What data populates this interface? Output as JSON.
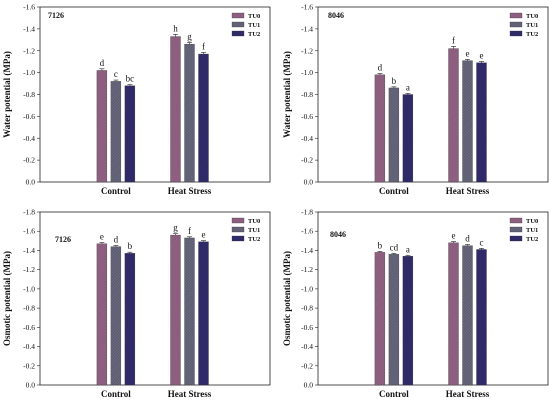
{
  "colors": {
    "TU0": "#8a5a7c",
    "TU1": "#5c5c72",
    "TU2": "#2b2665",
    "frame": "#222222"
  },
  "chart_data": [
    {
      "type": "bar",
      "title": "7126",
      "ylabel": "Water potential (MPa)",
      "ylim": [
        0,
        -1.6
      ],
      "yticks": [
        "-1.6",
        "-1.4",
        "-1.2",
        "-1.0",
        "-0.8",
        "-0.6",
        "-0.4",
        "-0.2",
        "0.0"
      ],
      "categories": [
        "Control",
        "Heat Stress"
      ],
      "legend": "top-right",
      "series": [
        {
          "name": "TU0",
          "values": [
            -1.02,
            -1.33
          ],
          "errors": [
            0.015,
            0.02
          ],
          "letters": [
            "d",
            "h"
          ]
        },
        {
          "name": "TU1",
          "values": [
            -0.92,
            -1.26
          ],
          "errors": [
            0.012,
            0.015
          ],
          "letters": [
            "c",
            "g"
          ]
        },
        {
          "name": "TU2",
          "values": [
            -0.88,
            -1.17
          ],
          "errors": [
            0.01,
            0.015
          ],
          "letters": [
            "bc",
            "f"
          ]
        }
      ]
    },
    {
      "type": "bar",
      "title": "8046",
      "ylabel": "Water potential (MPa)",
      "ylim": [
        0,
        -1.6
      ],
      "yticks": [
        "-1.6",
        "-1.4",
        "-1.2",
        "-1.0",
        "-0.8",
        "-0.6",
        "-0.4",
        "-0.2",
        "0.0"
      ],
      "categories": [
        "Control",
        "Heat Stress"
      ],
      "legend": "top-right",
      "series": [
        {
          "name": "TU0",
          "values": [
            -0.98,
            -1.22
          ],
          "errors": [
            0.012,
            0.02
          ],
          "letters": [
            "d",
            "f"
          ]
        },
        {
          "name": "TU1",
          "values": [
            -0.86,
            -1.11
          ],
          "errors": [
            0.01,
            0.012
          ],
          "letters": [
            "b",
            "e"
          ]
        },
        {
          "name": "TU2",
          "values": [
            -0.8,
            -1.09
          ],
          "errors": [
            0.01,
            0.012
          ],
          "letters": [
            "a",
            "e"
          ]
        }
      ]
    },
    {
      "type": "bar",
      "title": "7126",
      "ylabel": "Osmotic potential (MPa)",
      "ylim": [
        0,
        -1.8
      ],
      "yticks": [
        "-1.8",
        "-1.6",
        "-1.4",
        "-1.2",
        "-1.0",
        "-0.8",
        "-0.6",
        "-0.4",
        "-0.2",
        "0.0"
      ],
      "categories": [
        "Control",
        "Heat Stress"
      ],
      "legend": "top-right",
      "series": [
        {
          "name": "TU0",
          "values": [
            -1.47,
            -1.56
          ],
          "errors": [
            0.012,
            0.015
          ],
          "letters": [
            "e",
            "g"
          ]
        },
        {
          "name": "TU1",
          "values": [
            -1.44,
            -1.53
          ],
          "errors": [
            0.012,
            0.012
          ],
          "letters": [
            "d",
            "f"
          ]
        },
        {
          "name": "TU2",
          "values": [
            -1.37,
            -1.49
          ],
          "errors": [
            0.012,
            0.012
          ],
          "letters": [
            "b",
            "e"
          ]
        }
      ]
    },
    {
      "type": "bar",
      "title": "8046",
      "ylabel": "Osmotic potential (MPa)",
      "ylim": [
        0,
        -1.8
      ],
      "yticks": [
        "-1.8",
        "-1.6",
        "-1.4",
        "-1.2",
        "-1.0",
        "-0.8",
        "-0.6",
        "-0.4",
        "-0.2",
        "0.0"
      ],
      "categories": [
        "Control",
        "Heat Stress"
      ],
      "legend": "top-right",
      "series": [
        {
          "name": "TU0",
          "values": [
            -1.38,
            -1.48
          ],
          "errors": [
            0.01,
            0.012
          ],
          "letters": [
            "b",
            "e"
          ]
        },
        {
          "name": "TU1",
          "values": [
            -1.36,
            -1.45
          ],
          "errors": [
            0.01,
            0.012
          ],
          "letters": [
            "cd",
            "d"
          ]
        },
        {
          "name": "TU2",
          "values": [
            -1.34,
            -1.41
          ],
          "errors": [
            0.01,
            0.012
          ],
          "letters": [
            "a",
            "c"
          ]
        }
      ]
    }
  ]
}
